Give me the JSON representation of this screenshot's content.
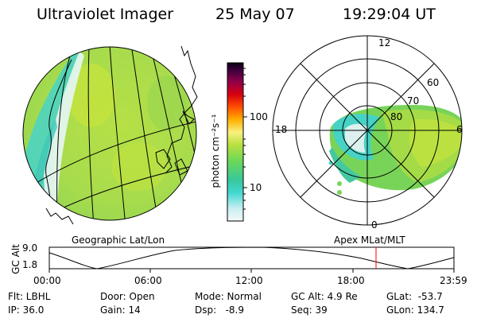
{
  "header": {
    "title": "Ultraviolet Imager",
    "date": "25 May 07",
    "time": "19:29:04 UT"
  },
  "colorbar": {
    "unit_label": "photon cm⁻²s⁻¹",
    "tick_100": "100",
    "tick_10": "10",
    "colors": [
      "#e8f2f4",
      "#48d8d0",
      "#40c8a0",
      "#b8e040",
      "#ffee60",
      "#ffb000",
      "#ff6000",
      "#e00000",
      "#a00040",
      "#500050",
      "#0a0010"
    ]
  },
  "polar_plot": {
    "mlt_labels": {
      "top": "12",
      "left": "18",
      "right": "6",
      "bottom": "0"
    },
    "lat_labels": [
      "60",
      "70",
      "80"
    ]
  },
  "left_map": {
    "projection_label": "Geographic Lat/Lon"
  },
  "right_map": {
    "projection_label": "Apex MLat/MLT"
  },
  "altitude_plot": {
    "ylabel": "GC Alt",
    "ytick_top": "9.0",
    "ytick_bottom": "1.8",
    "xticks": [
      "00:00",
      "06:00",
      "12:00",
      "18:00",
      "23:59"
    ],
    "marker_color": "#ff0000"
  },
  "status": {
    "flt": "Flt: LBHL",
    "ip": "IP: 36.0",
    "door": "Door: Open",
    "gain": "Gain: 14",
    "mode": "Mode: Normal",
    "dsp": "Dsp:   -8.9",
    "gc_alt": "GC Alt: 4.9 Re",
    "seq": "Seq: 39",
    "glat": "GLat:  -53.7",
    "glon": "GLon: 134.7"
  }
}
